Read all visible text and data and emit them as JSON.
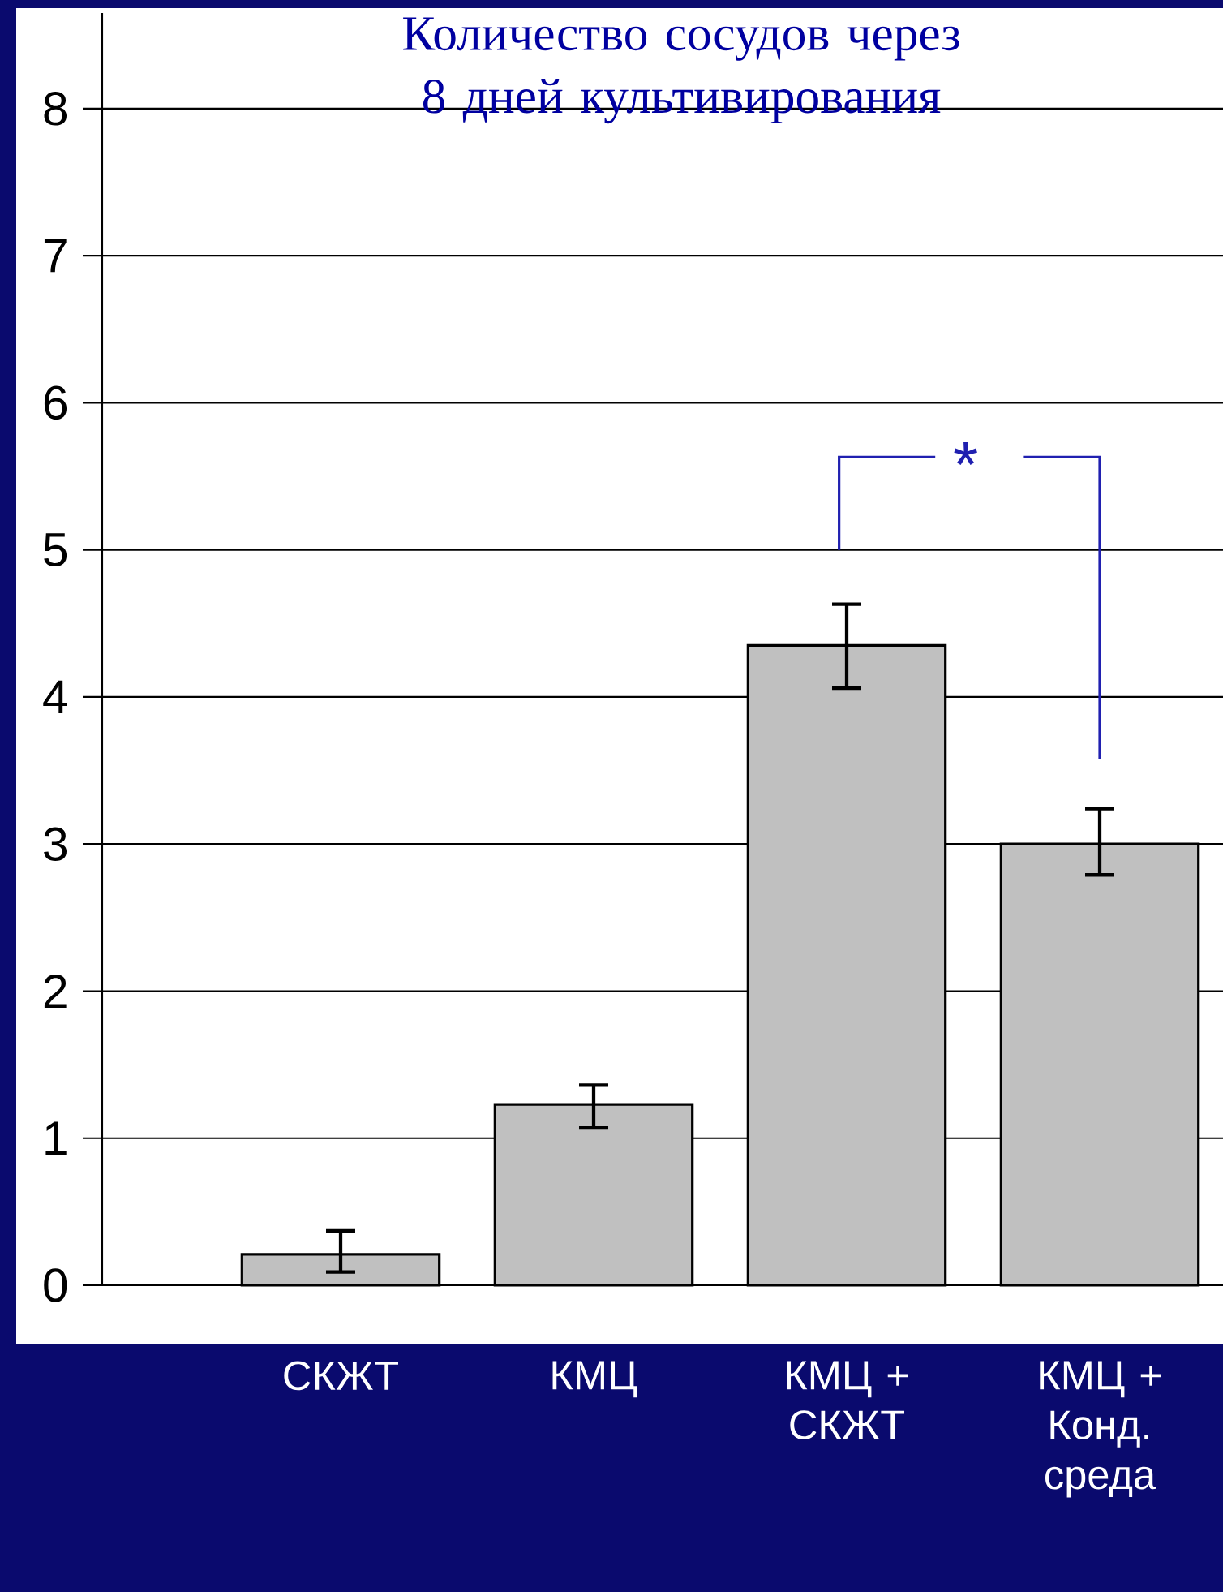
{
  "chart_data": {
    "type": "bar",
    "title": "Количество сосудов через 8 дней культивирования",
    "categories": [
      "СКЖТ",
      "КМЦ",
      "КМЦ + СКЖТ",
      "КМЦ + Конд. среда"
    ],
    "values": [
      0.21,
      1.23,
      4.35,
      3.0
    ],
    "errors": [
      [
        0.09,
        0.37
      ],
      [
        1.07,
        1.36
      ],
      [
        4.06,
        4.63
      ],
      [
        2.79,
        3.24
      ]
    ],
    "color": "#c0c0c0",
    "ylim": [
      0,
      8.65
    ],
    "yticks": [
      0,
      1,
      2,
      3,
      4,
      5,
      6,
      7,
      8
    ],
    "grid": "y",
    "annotations": [
      "*"
    ]
  }
}
